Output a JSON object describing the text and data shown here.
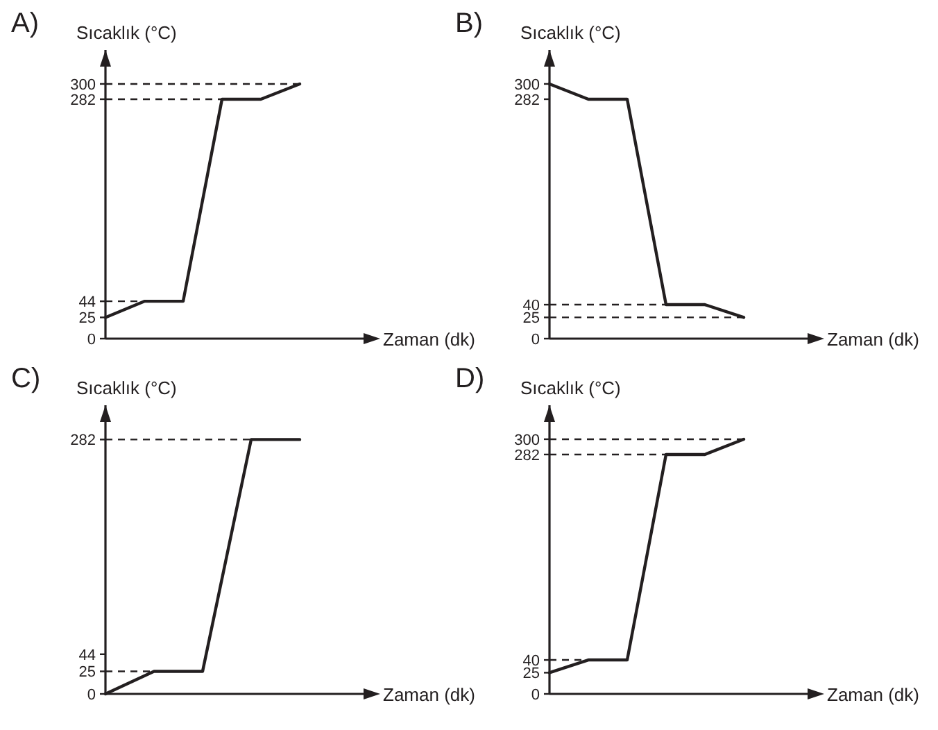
{
  "chart_data": [
    {
      "type": "line",
      "title": "A)",
      "xlabel": "Zaman (dk)",
      "ylabel": "Sıcaklık (°C)",
      "categories": [
        null,
        null,
        null,
        null,
        null,
        null
      ],
      "series": [
        {
          "color": "#231f20",
          "values": [
            25,
            44,
            44,
            282,
            282,
            300
          ]
        }
      ],
      "ylim": [
        0,
        340
      ],
      "yticks": [
        0,
        25,
        44,
        282,
        300
      ],
      "ref_lines": [
        {
          "axis": "y",
          "value": 300,
          "line_style": "dashed"
        },
        {
          "axis": "y",
          "value": 282,
          "line_style": "dashed"
        },
        {
          "axis": "y",
          "value": 44,
          "line_style": "dashed"
        }
      ]
    },
    {
      "type": "line",
      "title": "B)",
      "xlabel": "Zaman (dk)",
      "ylabel": "Sıcaklık (°C)",
      "categories": [
        null,
        null,
        null,
        null,
        null,
        null
      ],
      "series": [
        {
          "color": "#231f20",
          "values": [
            300,
            282,
            282,
            40,
            40,
            25
          ]
        }
      ],
      "ylim": [
        0,
        340
      ],
      "yticks": [
        0,
        25,
        40,
        282,
        300
      ],
      "ref_lines": [
        {
          "axis": "y",
          "value": 40,
          "line_style": "dashed"
        },
        {
          "axis": "y",
          "value": 25,
          "line_style": "dashed"
        }
      ]
    },
    {
      "type": "line",
      "title": "C)",
      "xlabel": "Zaman (dk)",
      "ylabel": "Sıcaklık (°C)",
      "categories": [
        null,
        null,
        null,
        null,
        null
      ],
      "series": [
        {
          "color": "#231f20",
          "values": [
            0,
            25,
            25,
            282,
            282
          ]
        }
      ],
      "ylim": [
        0,
        320
      ],
      "yticks": [
        0,
        25,
        44,
        282
      ],
      "ref_lines": [
        {
          "axis": "y",
          "value": 282,
          "line_style": "dashed"
        },
        {
          "axis": "y",
          "value": 25,
          "line_style": "dashed"
        }
      ]
    },
    {
      "type": "line",
      "title": "D)",
      "xlabel": "Zaman (dk)",
      "ylabel": "Sıcaklık (°C)",
      "categories": [
        null,
        null,
        null,
        null,
        null,
        null
      ],
      "series": [
        {
          "color": "#231f20",
          "values": [
            25,
            40,
            40,
            282,
            282,
            300
          ]
        }
      ],
      "ylim": [
        0,
        340
      ],
      "yticks": [
        0,
        25,
        40,
        282,
        300
      ],
      "ref_lines": [
        {
          "axis": "y",
          "value": 300,
          "line_style": "dashed"
        },
        {
          "axis": "y",
          "value": 282,
          "line_style": "dashed"
        },
        {
          "axis": "y",
          "value": 40,
          "line_style": "dashed"
        }
      ]
    }
  ]
}
